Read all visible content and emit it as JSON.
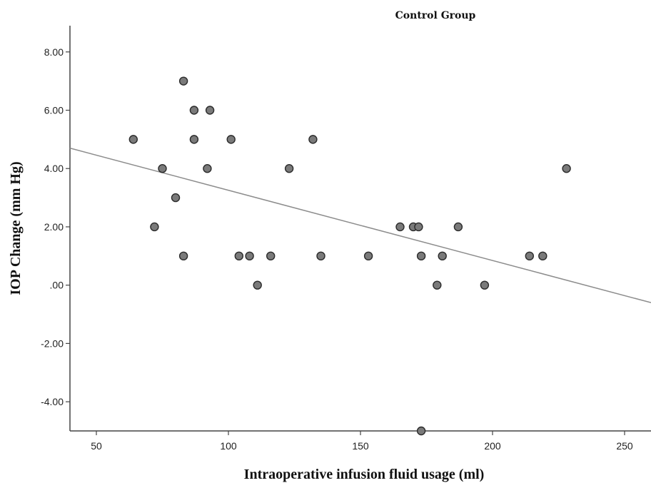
{
  "chart_data": {
    "type": "scatter",
    "title": "Control Group",
    "xlabel": "Intraoperative infusion fluid usage (ml)",
    "ylabel": "IOP Change (mm Hg)",
    "xlim": [
      40,
      260
    ],
    "ylim": [
      -5,
      8.9
    ],
    "x_ticks": [
      50,
      100,
      150,
      200,
      250
    ],
    "x_tick_labels": [
      "50",
      "100",
      "150",
      "200",
      "250"
    ],
    "y_ticks": [
      -4,
      -2,
      0,
      2,
      4,
      6,
      8
    ],
    "y_tick_labels": [
      "-4.00",
      "-2.00",
      ".00",
      "2.00",
      "4.00",
      "6.00",
      "8.00"
    ],
    "grid": false,
    "points": [
      {
        "x": 64,
        "y": 5
      },
      {
        "x": 72,
        "y": 2
      },
      {
        "x": 75,
        "y": 4
      },
      {
        "x": 80,
        "y": 3
      },
      {
        "x": 83,
        "y": 7
      },
      {
        "x": 83,
        "y": 1
      },
      {
        "x": 87,
        "y": 6
      },
      {
        "x": 87,
        "y": 5
      },
      {
        "x": 92,
        "y": 4
      },
      {
        "x": 93,
        "y": 6
      },
      {
        "x": 101,
        "y": 5
      },
      {
        "x": 104,
        "y": 1
      },
      {
        "x": 108,
        "y": 1
      },
      {
        "x": 111,
        "y": 0
      },
      {
        "x": 116,
        "y": 1
      },
      {
        "x": 123,
        "y": 4
      },
      {
        "x": 132,
        "y": 5
      },
      {
        "x": 135,
        "y": 1
      },
      {
        "x": 153,
        "y": 1
      },
      {
        "x": 165,
        "y": 2
      },
      {
        "x": 170,
        "y": 2
      },
      {
        "x": 172,
        "y": 2
      },
      {
        "x": 173,
        "y": 1
      },
      {
        "x": 173,
        "y": -5
      },
      {
        "x": 179,
        "y": 0
      },
      {
        "x": 181,
        "y": 1
      },
      {
        "x": 187,
        "y": 2
      },
      {
        "x": 197,
        "y": 0
      },
      {
        "x": 214,
        "y": 1
      },
      {
        "x": 219,
        "y": 1
      },
      {
        "x": 228,
        "y": 4
      }
    ],
    "fit_line": {
      "x": [
        40,
        260
      ],
      "y": [
        4.7,
        -0.6
      ]
    },
    "colors": {
      "point_fill": "#7a7a7a",
      "point_stroke": "#2b2b2b",
      "fit_line": "#8c8c8c",
      "axis": "#444444"
    }
  }
}
